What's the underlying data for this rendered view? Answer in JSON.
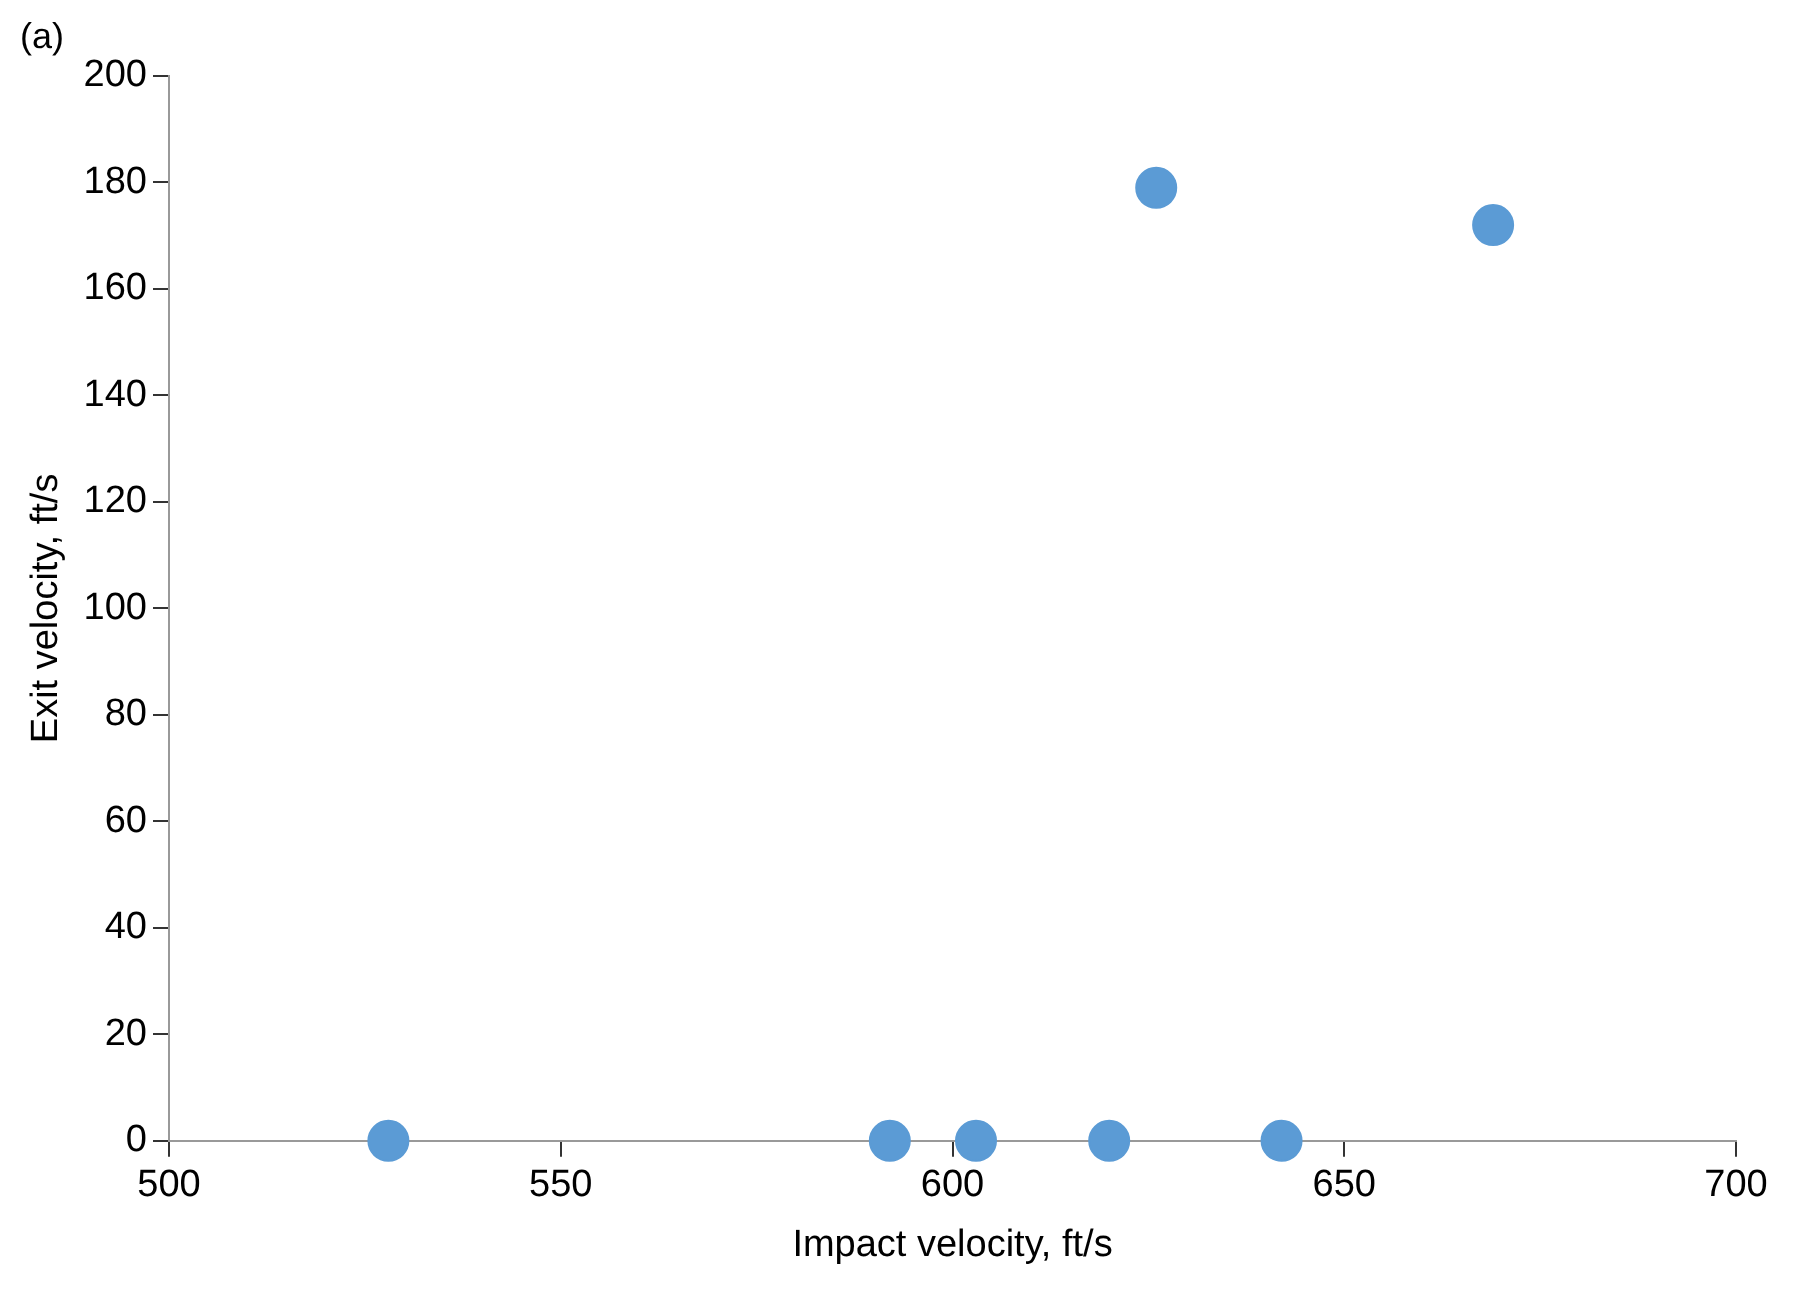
{
  "chart_data": {
    "type": "scatter",
    "xlabel": "Impact velocity, ft/s",
    "ylabel": "Exit velocity, ft/s",
    "annotations": [
      "(a)"
    ],
    "x": [
      528,
      592,
      603,
      620,
      642,
      626,
      669
    ],
    "values": [
      0,
      0,
      0,
      0,
      0,
      179,
      172
    ],
    "color": "#5b9bd5",
    "marker": "circle",
    "xlim": [
      500,
      700
    ],
    "xticks": [
      500,
      550,
      600,
      650,
      700
    ],
    "ylim": [
      0,
      200
    ],
    "yticks": [
      0,
      20,
      40,
      60,
      80,
      100,
      120,
      140,
      160,
      180,
      200
    ],
    "grid": false,
    "legend": false
  }
}
